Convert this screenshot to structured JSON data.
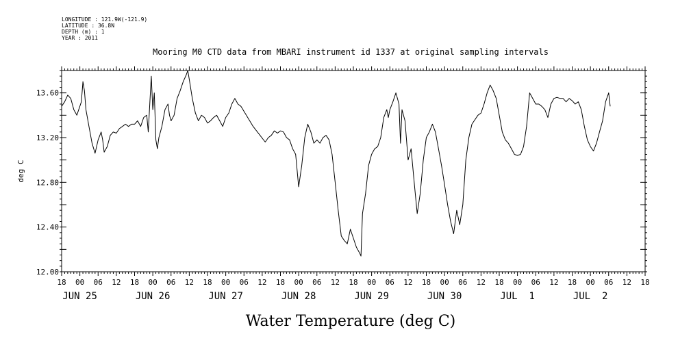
{
  "header": {
    "longitude": "LONGITUDE : 121.9W(-121.9)",
    "latitude": "LATITUDE : 36.8N",
    "depth": "DEPTH (m) : 1",
    "year": "YEAR : 2011"
  },
  "chart_data": {
    "type": "line",
    "title": "Mooring M0 CTD data from MBARI instrument id 1337 at original sampling intervals",
    "xlabel": "Water Temperature (deg C)",
    "ylabel": "deg C",
    "x_unit": "hours since 2011-06-24 18:00 UTC",
    "xlim": [
      0,
      192
    ],
    "ylim": [
      12.0,
      13.8
    ],
    "y_ticks": [
      "12.00",
      "12.40",
      "12.80",
      "13.20",
      "13.60"
    ],
    "y_tick_values": [
      12.0,
      12.4,
      12.8,
      13.2,
      13.6
    ],
    "x_hour_ticks": [
      "18",
      "00",
      "06",
      "12",
      "18",
      "00",
      "06",
      "12",
      "18",
      "00",
      "06",
      "12",
      "18",
      "00",
      "06",
      "12",
      "18",
      "00",
      "06",
      "12",
      "18",
      "00",
      "06",
      "12",
      "18",
      "00",
      "06",
      "12",
      "18",
      "00",
      "06",
      "12",
      "18"
    ],
    "x_day_labels": [
      {
        "label": "JUN 25",
        "hour": 6
      },
      {
        "label": "JUN 26",
        "hour": 30
      },
      {
        "label": "JUN 27",
        "hour": 54
      },
      {
        "label": "JUN 28",
        "hour": 78
      },
      {
        "label": "JUN 29",
        "hour": 102
      },
      {
        "label": "JUN 30",
        "hour": 126
      },
      {
        "label": "JUL  1",
        "hour": 150
      },
      {
        "label": "JUL  2",
        "hour": 174
      }
    ],
    "grid": false,
    "series": [
      {
        "color": "#000000",
        "points": [
          [
            0,
            13.48
          ],
          [
            1,
            13.52
          ],
          [
            2,
            13.58
          ],
          [
            3,
            13.55
          ],
          [
            4,
            13.45
          ],
          [
            5,
            13.4
          ],
          [
            6,
            13.48
          ],
          [
            6.5,
            13.52
          ],
          [
            7,
            13.7
          ],
          [
            7.5,
            13.62
          ],
          [
            8,
            13.45
          ],
          [
            9,
            13.3
          ],
          [
            10,
            13.15
          ],
          [
            11,
            13.06
          ],
          [
            12,
            13.18
          ],
          [
            13,
            13.25
          ],
          [
            13.5,
            13.18
          ],
          [
            14,
            13.07
          ],
          [
            15,
            13.12
          ],
          [
            16,
            13.22
          ],
          [
            17,
            13.25
          ],
          [
            18,
            13.24
          ],
          [
            19,
            13.28
          ],
          [
            20,
            13.3
          ],
          [
            21,
            13.32
          ],
          [
            22,
            13.3
          ],
          [
            23,
            13.32
          ],
          [
            24,
            13.32
          ],
          [
            25,
            13.35
          ],
          [
            26,
            13.3
          ],
          [
            27,
            13.38
          ],
          [
            28,
            13.4
          ],
          [
            28.5,
            13.25
          ],
          [
            29,
            13.5
          ],
          [
            29.5,
            13.75
          ],
          [
            30,
            13.45
          ],
          [
            30.5,
            13.6
          ],
          [
            31,
            13.18
          ],
          [
            31.5,
            13.1
          ],
          [
            32,
            13.2
          ],
          [
            33,
            13.3
          ],
          [
            34,
            13.45
          ],
          [
            35,
            13.5
          ],
          [
            35.5,
            13.4
          ],
          [
            36,
            13.35
          ],
          [
            37,
            13.4
          ],
          [
            38,
            13.55
          ],
          [
            39,
            13.62
          ],
          [
            40,
            13.7
          ],
          [
            41,
            13.76
          ],
          [
            41.5,
            13.8
          ],
          [
            42,
            13.72
          ],
          [
            43,
            13.55
          ],
          [
            44,
            13.42
          ],
          [
            45,
            13.35
          ],
          [
            46,
            13.4
          ],
          [
            47,
            13.38
          ],
          [
            48,
            13.33
          ],
          [
            49,
            13.35
          ],
          [
            50,
            13.38
          ],
          [
            51,
            13.4
          ],
          [
            52,
            13.35
          ],
          [
            53,
            13.3
          ],
          [
            54,
            13.38
          ],
          [
            55,
            13.42
          ],
          [
            56,
            13.5
          ],
          [
            57,
            13.55
          ],
          [
            58,
            13.5
          ],
          [
            59,
            13.48
          ],
          [
            63,
            13.3
          ],
          [
            67,
            13.16
          ],
          [
            68,
            13.2
          ],
          [
            69,
            13.22
          ],
          [
            70,
            13.26
          ],
          [
            71,
            13.24
          ],
          [
            72,
            13.26
          ],
          [
            73,
            13.25
          ],
          [
            74,
            13.2
          ],
          [
            75,
            13.18
          ],
          [
            76,
            13.1
          ],
          [
            77,
            13.05
          ],
          [
            78,
            12.76
          ],
          [
            79,
            12.95
          ],
          [
            80,
            13.2
          ],
          [
            81,
            13.32
          ],
          [
            82,
            13.25
          ],
          [
            83,
            13.15
          ],
          [
            84,
            13.18
          ],
          [
            85,
            13.15
          ],
          [
            86,
            13.2
          ],
          [
            87,
            13.22
          ],
          [
            88,
            13.18
          ],
          [
            89,
            13.05
          ],
          [
            90,
            12.8
          ],
          [
            91,
            12.55
          ],
          [
            92,
            12.32
          ],
          [
            93,
            12.28
          ],
          [
            94,
            12.25
          ],
          [
            95,
            12.38
          ],
          [
            96,
            12.3
          ],
          [
            97,
            12.22
          ],
          [
            98,
            12.17
          ],
          [
            98.5,
            12.14
          ],
          [
            99,
            12.52
          ],
          [
            100,
            12.7
          ],
          [
            101,
            12.95
          ],
          [
            102,
            13.05
          ],
          [
            103,
            13.1
          ],
          [
            104,
            13.12
          ],
          [
            105,
            13.2
          ],
          [
            106,
            13.38
          ],
          [
            107,
            13.45
          ],
          [
            107.5,
            13.38
          ],
          [
            108,
            13.45
          ],
          [
            109,
            13.52
          ],
          [
            110,
            13.6
          ],
          [
            111,
            13.5
          ],
          [
            111.5,
            13.15
          ],
          [
            112,
            13.45
          ],
          [
            113,
            13.35
          ],
          [
            114,
            13.0
          ],
          [
            115,
            13.1
          ],
          [
            116,
            12.8
          ],
          [
            117,
            12.52
          ],
          [
            118,
            12.7
          ],
          [
            119,
            13.0
          ],
          [
            120,
            13.2
          ],
          [
            121,
            13.25
          ],
          [
            122,
            13.32
          ],
          [
            123,
            13.25
          ],
          [
            124,
            13.1
          ],
          [
            125,
            12.95
          ],
          [
            126,
            12.78
          ],
          [
            127,
            12.6
          ],
          [
            128,
            12.45
          ],
          [
            129,
            12.34
          ],
          [
            130,
            12.55
          ],
          [
            131,
            12.42
          ],
          [
            132,
            12.6
          ],
          [
            133,
            13.0
          ],
          [
            134,
            13.2
          ],
          [
            135,
            13.32
          ],
          [
            136,
            13.36
          ],
          [
            137,
            13.4
          ],
          [
            138,
            13.42
          ],
          [
            139,
            13.5
          ],
          [
            140,
            13.6
          ],
          [
            141,
            13.67
          ],
          [
            142,
            13.62
          ],
          [
            143,
            13.55
          ],
          [
            144,
            13.4
          ],
          [
            145,
            13.25
          ],
          [
            146,
            13.18
          ],
          [
            147,
            13.15
          ],
          [
            148,
            13.1
          ],
          [
            149,
            13.05
          ],
          [
            150,
            13.04
          ],
          [
            151,
            13.05
          ],
          [
            152,
            13.12
          ],
          [
            153,
            13.3
          ],
          [
            154,
            13.6
          ],
          [
            155,
            13.55
          ],
          [
            156,
            13.5
          ],
          [
            157,
            13.5
          ],
          [
            158,
            13.48
          ],
          [
            159,
            13.45
          ],
          [
            160,
            13.38
          ],
          [
            161,
            13.5
          ],
          [
            162,
            13.55
          ],
          [
            163,
            13.56
          ],
          [
            164,
            13.55
          ],
          [
            165,
            13.55
          ],
          [
            166,
            13.52
          ],
          [
            167,
            13.55
          ],
          [
            168,
            13.53
          ],
          [
            169,
            13.5
          ],
          [
            170,
            13.52
          ],
          [
            171,
            13.45
          ],
          [
            172,
            13.3
          ],
          [
            173,
            13.18
          ],
          [
            174,
            13.12
          ],
          [
            175,
            13.08
          ],
          [
            176,
            13.15
          ],
          [
            177,
            13.25
          ],
          [
            178,
            13.35
          ],
          [
            179,
            13.52
          ],
          [
            180,
            13.6
          ],
          [
            180.5,
            13.48
          ]
        ]
      }
    ]
  }
}
